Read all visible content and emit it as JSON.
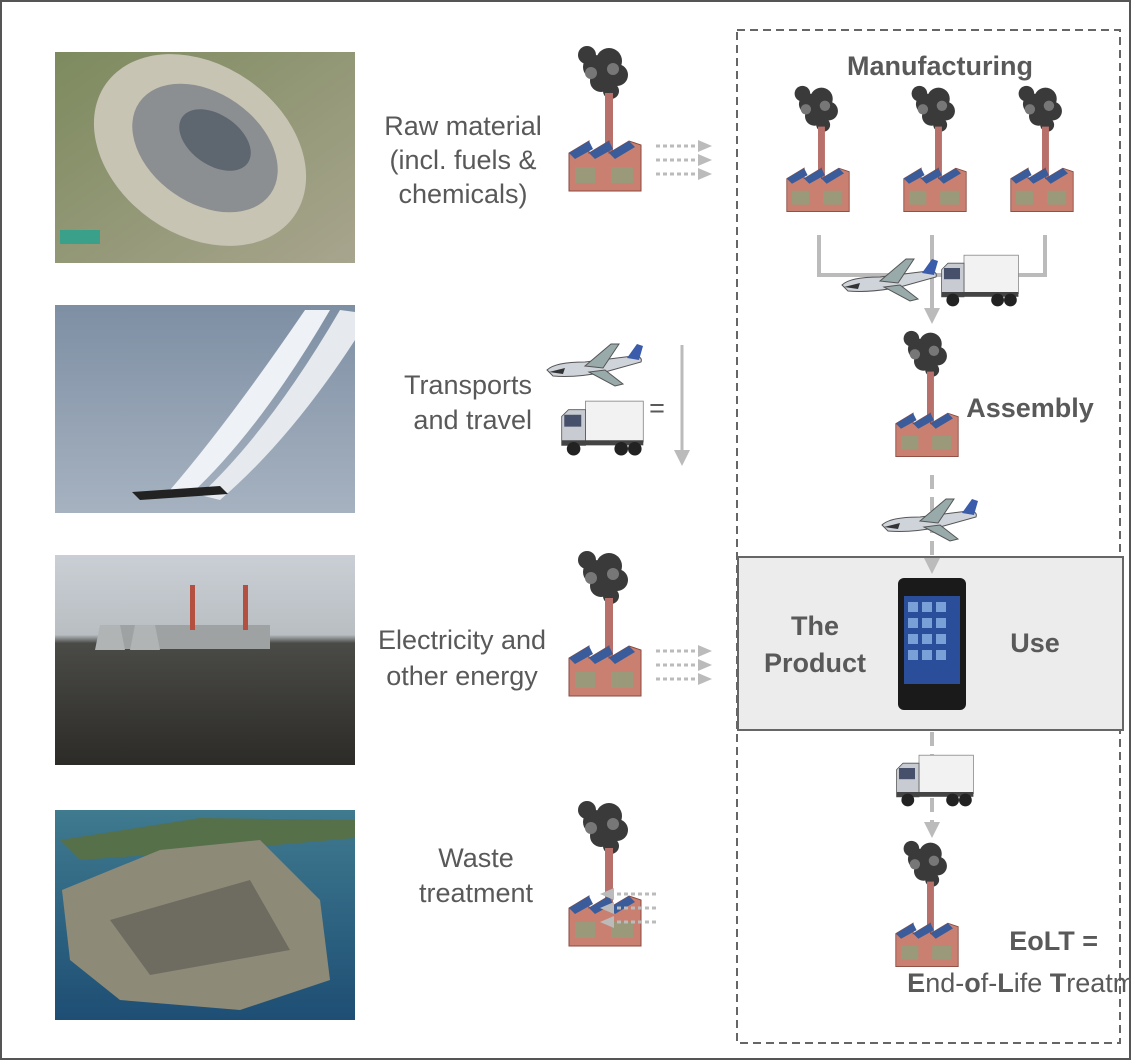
{
  "sources": [
    {
      "lines": [
        "Raw material",
        "(incl. fuels &",
        "chemicals)"
      ]
    },
    {
      "lines": [
        "Transports",
        "and travel"
      ],
      "equals": "="
    },
    {
      "lines": [
        "Electricity and",
        "other energy"
      ]
    },
    {
      "lines": [
        "Waste",
        "treatment"
      ]
    }
  ],
  "chain": {
    "manufacturing": "Manufacturing",
    "assembly": "Assembly",
    "product": {
      "lines": [
        "The",
        "Product"
      ],
      "use": "Use"
    },
    "eolt": {
      "title": "EoLT =",
      "definition": [
        {
          "text": "E",
          "bold": true
        },
        {
          "text": "nd-",
          "bold": false
        },
        {
          "text": "o",
          "bold": true
        },
        {
          "text": "f-",
          "bold": false
        },
        {
          "text": "L",
          "bold": true
        },
        {
          "text": "ife ",
          "bold": false
        },
        {
          "text": "T",
          "bold": true
        },
        {
          "text": "reatment",
          "bold": false
        }
      ]
    }
  }
}
